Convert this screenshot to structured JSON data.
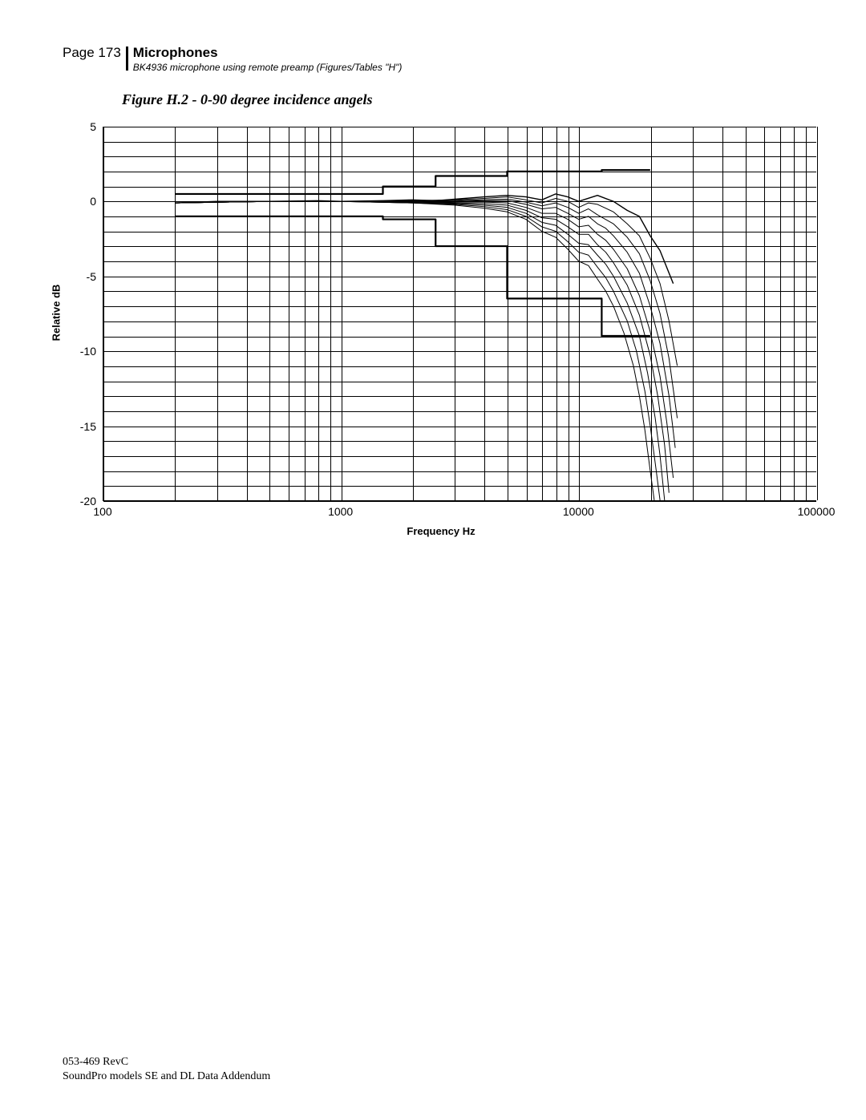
{
  "header": {
    "page_label": "Page 173",
    "section": "Microphones",
    "subtitle": "BK4936 microphone using remote preamp (Figures/Tables \"H\")"
  },
  "figure": {
    "title": "Figure H.2 - 0-90 degree incidence angels",
    "xlabel": "Frequency Hz",
    "ylabel": "Relative dB",
    "ylim": [
      -20,
      5
    ],
    "ytick_labels": [
      "5",
      "0",
      "-5",
      "-10",
      "-15",
      "-20"
    ],
    "ytick_values": [
      5,
      0,
      -5,
      -10,
      -15,
      -20
    ],
    "xlim_log": [
      2,
      5
    ],
    "xtick_labels": [
      "100",
      "1000",
      "10000",
      "100000"
    ],
    "xtick_log_values": [
      2,
      3,
      4,
      5
    ],
    "minor_y_grid_step": 1,
    "line_color": "#000000",
    "grid_color": "#000000",
    "background_color": "#ffffff",
    "upper_bound": {
      "stroke_width": 2.2,
      "points": [
        [
          200,
          0.5
        ],
        [
          1500,
          0.5
        ],
        [
          1500,
          1
        ],
        [
          2500,
          1
        ],
        [
          2500,
          1.7
        ],
        [
          5000,
          1.7
        ],
        [
          5000,
          2
        ],
        [
          12500,
          2
        ],
        [
          12500,
          2.1
        ],
        [
          20000,
          2.1
        ]
      ]
    },
    "lower_bound": {
      "stroke_width": 2.2,
      "points": [
        [
          200,
          -1
        ],
        [
          1500,
          -1
        ],
        [
          1500,
          -1.2
        ],
        [
          2500,
          -1.2
        ],
        [
          2500,
          -3
        ],
        [
          5000,
          -3
        ],
        [
          5000,
          -6.5
        ],
        [
          12500,
          -6.5
        ],
        [
          12500,
          -9
        ],
        [
          20000,
          -9
        ]
      ]
    },
    "series": [
      {
        "w": 1.4,
        "pts": [
          [
            200,
            -0.1
          ],
          [
            300,
            0
          ],
          [
            500,
            0
          ],
          [
            800,
            0.05
          ],
          [
            1000,
            0
          ],
          [
            1500,
            0.05
          ],
          [
            2000,
            0.1
          ],
          [
            2500,
            0.05
          ],
          [
            3000,
            0.15
          ],
          [
            4000,
            0.3
          ],
          [
            5000,
            0.4
          ],
          [
            6000,
            0.3
          ],
          [
            7000,
            0.1
          ],
          [
            8000,
            0.5
          ],
          [
            9000,
            0.3
          ],
          [
            10000,
            0
          ],
          [
            12000,
            0.4
          ],
          [
            14000,
            0
          ],
          [
            16000,
            -0.6
          ],
          [
            18000,
            -1
          ],
          [
            20000,
            -2.3
          ],
          [
            22000,
            -3.3
          ],
          [
            25000,
            -5.5
          ]
        ]
      },
      {
        "w": 1.0,
        "pts": [
          [
            200,
            -0.1
          ],
          [
            500,
            0
          ],
          [
            1000,
            0
          ],
          [
            2000,
            0.05
          ],
          [
            3000,
            0.1
          ],
          [
            4000,
            0.2
          ],
          [
            5000,
            0.3
          ],
          [
            6000,
            0.1
          ],
          [
            7000,
            -0.1
          ],
          [
            8000,
            0.2
          ],
          [
            9000,
            0
          ],
          [
            10000,
            -0.4
          ],
          [
            11000,
            -0.1
          ],
          [
            12000,
            -0.2
          ],
          [
            14000,
            -0.7
          ],
          [
            16000,
            -1.5
          ],
          [
            18000,
            -2.3
          ],
          [
            20000,
            -3.8
          ],
          [
            22000,
            -5.5
          ],
          [
            24000,
            -8
          ],
          [
            26000,
            -11
          ]
        ]
      },
      {
        "w": 1.0,
        "pts": [
          [
            200,
            -0.1
          ],
          [
            500,
            0
          ],
          [
            1000,
            0
          ],
          [
            2000,
            0
          ],
          [
            3000,
            0.05
          ],
          [
            4000,
            0.1
          ],
          [
            5000,
            0.15
          ],
          [
            6000,
            -0.05
          ],
          [
            7000,
            -0.3
          ],
          [
            8000,
            -0.1
          ],
          [
            9000,
            -0.4
          ],
          [
            10000,
            -0.8
          ],
          [
            11000,
            -0.5
          ],
          [
            12000,
            -0.9
          ],
          [
            14000,
            -1.5
          ],
          [
            16000,
            -2.4
          ],
          [
            18000,
            -3.5
          ],
          [
            20000,
            -5.3
          ],
          [
            22000,
            -7.5
          ],
          [
            24000,
            -10.5
          ],
          [
            26000,
            -14.5
          ]
        ]
      },
      {
        "w": 1.0,
        "pts": [
          [
            200,
            -0.1
          ],
          [
            500,
            0
          ],
          [
            1000,
            0
          ],
          [
            2000,
            0
          ],
          [
            3000,
            0
          ],
          [
            4000,
            0.05
          ],
          [
            5000,
            0.05
          ],
          [
            6000,
            -0.2
          ],
          [
            7000,
            -0.5
          ],
          [
            8000,
            -0.4
          ],
          [
            9000,
            -0.8
          ],
          [
            10000,
            -1.2
          ],
          [
            11000,
            -1
          ],
          [
            12000,
            -1.5
          ],
          [
            13000,
            -1.8
          ],
          [
            14000,
            -2.3
          ],
          [
            16000,
            -3.4
          ],
          [
            18000,
            -4.8
          ],
          [
            20000,
            -7
          ],
          [
            22000,
            -9.5
          ],
          [
            24000,
            -13
          ],
          [
            25500,
            -16.5
          ]
        ]
      },
      {
        "w": 1.0,
        "pts": [
          [
            200,
            -0.1
          ],
          [
            500,
            0
          ],
          [
            1000,
            0
          ],
          [
            2000,
            -0.05
          ],
          [
            3000,
            -0.05
          ],
          [
            4000,
            -0.05
          ],
          [
            5000,
            -0.1
          ],
          [
            6000,
            -0.4
          ],
          [
            7000,
            -0.8
          ],
          [
            8000,
            -0.8
          ],
          [
            9000,
            -1.2
          ],
          [
            10000,
            -1.7
          ],
          [
            11000,
            -1.6
          ],
          [
            12000,
            -2.2
          ],
          [
            13000,
            -2.6
          ],
          [
            14000,
            -3.2
          ],
          [
            16000,
            -4.5
          ],
          [
            18000,
            -6.3
          ],
          [
            20000,
            -8.7
          ],
          [
            22000,
            -11.7
          ],
          [
            23500,
            -14.8
          ],
          [
            25000,
            -18.5
          ]
        ]
      },
      {
        "w": 1.0,
        "pts": [
          [
            200,
            -0.1
          ],
          [
            500,
            0
          ],
          [
            1000,
            0
          ],
          [
            2000,
            -0.05
          ],
          [
            3000,
            -0.1
          ],
          [
            4000,
            -0.15
          ],
          [
            5000,
            -0.25
          ],
          [
            6000,
            -0.6
          ],
          [
            7000,
            -1.1
          ],
          [
            8000,
            -1.2
          ],
          [
            9000,
            -1.7
          ],
          [
            10000,
            -2.2
          ],
          [
            11000,
            -2.2
          ],
          [
            12000,
            -2.9
          ],
          [
            13000,
            -3.4
          ],
          [
            14000,
            -4.1
          ],
          [
            16000,
            -5.6
          ],
          [
            18000,
            -7.6
          ],
          [
            20000,
            -10.3
          ],
          [
            21500,
            -13
          ],
          [
            23000,
            -16.3
          ],
          [
            24000,
            -19.5
          ]
        ]
      },
      {
        "w": 1.0,
        "pts": [
          [
            200,
            -0.1
          ],
          [
            500,
            0
          ],
          [
            1000,
            0
          ],
          [
            2000,
            -0.1
          ],
          [
            3000,
            -0.15
          ],
          [
            4000,
            -0.25
          ],
          [
            5000,
            -0.4
          ],
          [
            6000,
            -0.8
          ],
          [
            7000,
            -1.4
          ],
          [
            8000,
            -1.6
          ],
          [
            9000,
            -2.2
          ],
          [
            10000,
            -2.8
          ],
          [
            11000,
            -2.9
          ],
          [
            12000,
            -3.6
          ],
          [
            13000,
            -4.2
          ],
          [
            14000,
            -5
          ],
          [
            16000,
            -6.8
          ],
          [
            18000,
            -9
          ],
          [
            19500,
            -11.5
          ],
          [
            21000,
            -14.5
          ],
          [
            22000,
            -17
          ],
          [
            23000,
            -20
          ]
        ]
      },
      {
        "w": 1.0,
        "pts": [
          [
            200,
            -0.1
          ],
          [
            500,
            0
          ],
          [
            1000,
            0
          ],
          [
            2000,
            -0.1
          ],
          [
            3000,
            -0.2
          ],
          [
            4000,
            -0.35
          ],
          [
            5000,
            -0.55
          ],
          [
            6000,
            -1
          ],
          [
            7000,
            -1.7
          ],
          [
            8000,
            -2
          ],
          [
            9000,
            -2.7
          ],
          [
            10000,
            -3.4
          ],
          [
            11000,
            -3.6
          ],
          [
            12000,
            -4.4
          ],
          [
            13000,
            -5.1
          ],
          [
            14000,
            -6
          ],
          [
            16000,
            -8
          ],
          [
            17500,
            -10
          ],
          [
            19000,
            -12.7
          ],
          [
            20000,
            -15
          ],
          [
            21000,
            -17.5
          ],
          [
            22000,
            -20
          ]
        ]
      },
      {
        "w": 1.0,
        "pts": [
          [
            200,
            -0.1
          ],
          [
            500,
            0
          ],
          [
            1000,
            0
          ],
          [
            2000,
            -0.1
          ],
          [
            3000,
            -0.25
          ],
          [
            4000,
            -0.45
          ],
          [
            5000,
            -0.7
          ],
          [
            6000,
            -1.2
          ],
          [
            7000,
            -2
          ],
          [
            8000,
            -2.4
          ],
          [
            9000,
            -3.2
          ],
          [
            10000,
            -4
          ],
          [
            11000,
            -4.3
          ],
          [
            12000,
            -5.2
          ],
          [
            13000,
            -6
          ],
          [
            14000,
            -7
          ],
          [
            15500,
            -8.8
          ],
          [
            17000,
            -11
          ],
          [
            18000,
            -13
          ],
          [
            19000,
            -15.3
          ],
          [
            20000,
            -18
          ],
          [
            20800,
            -20
          ]
        ]
      }
    ]
  },
  "footer": {
    "line1": "053-469 RevC",
    "line2": "SoundPro models SE and DL Data Addendum"
  }
}
